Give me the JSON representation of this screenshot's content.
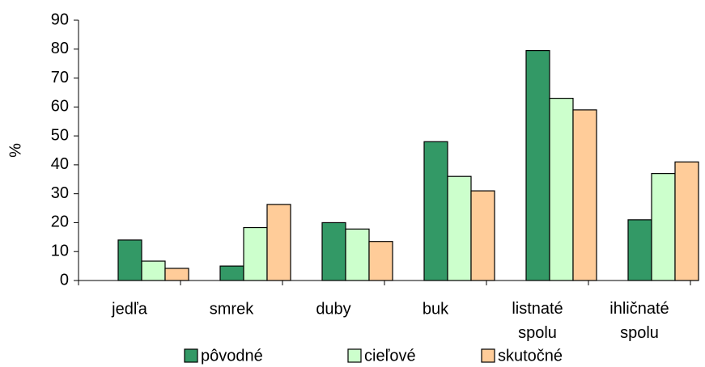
{
  "chart_data": {
    "type": "bar",
    "y_label": "%",
    "categories": [
      "jedľa",
      "smrek",
      "duby",
      "buk",
      "listnaté spolu",
      "ihličnaté spolu"
    ],
    "series": [
      {
        "name": "pôvodné",
        "color": "#339966",
        "values": [
          14,
          5,
          20,
          48,
          79.5,
          21
        ]
      },
      {
        "name": "cieľové",
        "color": "#ccffcc",
        "values": [
          6.7,
          18.3,
          17.8,
          36,
          63,
          37
        ]
      },
      {
        "name": "skutočné",
        "color": "#ffcc99",
        "values": [
          4.2,
          26.3,
          13.5,
          31,
          59,
          41
        ]
      }
    ],
    "ylim": [
      0,
      90
    ],
    "yticks": [
      0,
      10,
      20,
      30,
      40,
      50,
      60,
      70,
      80,
      90
    ],
    "legend": "bottom"
  }
}
